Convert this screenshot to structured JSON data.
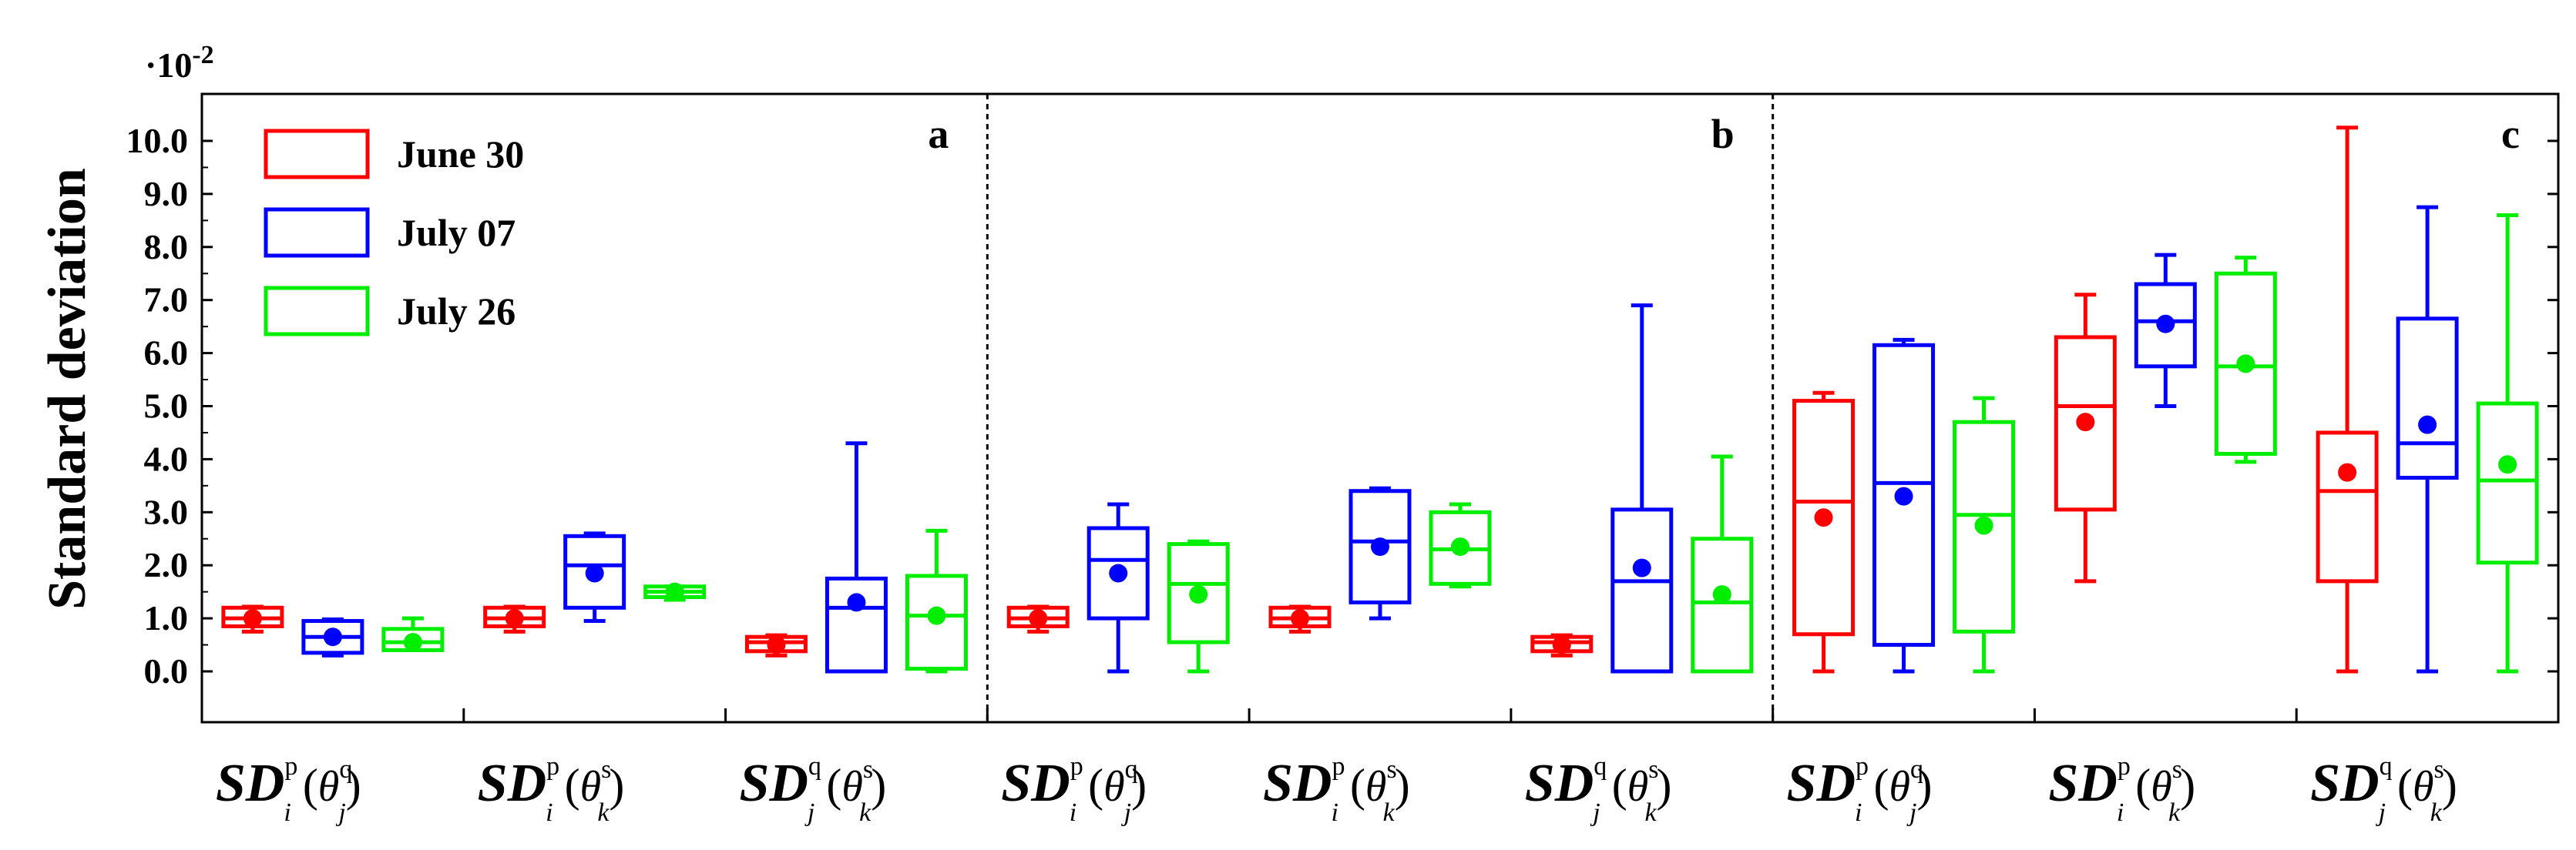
{
  "chart_data": {
    "type": "box",
    "title": "",
    "ylabel": "Standard deviation",
    "y_multiplier": "·10",
    "y_multiplier_exp": "-2",
    "ylim": [
      -0.7,
      10.7
    ],
    "yticks": [
      "0.0",
      "1.0",
      "2.0",
      "3.0",
      "4.0",
      "5.0",
      "6.0",
      "7.0",
      "8.0",
      "9.0",
      "10.0"
    ],
    "legend_position": "top-left",
    "legend": [
      {
        "name": "June 30",
        "color": "#ff0000"
      },
      {
        "name": "July 07",
        "color": "#0000ff"
      },
      {
        "name": "July 26",
        "color": "#00ee00"
      }
    ],
    "panels": [
      {
        "label": "a",
        "groups": [
          {
            "category": {
              "main": "SD",
              "sub": "i",
              "sup": "p",
              "theta": "θ",
              "tsub": "j",
              "tsup": "q"
            },
            "boxes": [
              {
                "series": "June 30",
                "min": 0.75,
                "q1": 0.85,
                "median": 1.0,
                "q3": 1.2,
                "max": 1.22,
                "mean": 1.0
              },
              {
                "series": "July 07",
                "min": 0.3,
                "q1": 0.35,
                "median": 0.65,
                "q3": 0.95,
                "max": 0.98,
                "mean": 0.65
              },
              {
                "series": "July 26",
                "min": 0.4,
                "q1": 0.4,
                "median": 0.55,
                "q3": 0.8,
                "max": 1.0,
                "mean": 0.55
              }
            ]
          },
          {
            "category": {
              "main": "SD",
              "sub": "i",
              "sup": "p",
              "theta": "θ",
              "tsub": "k",
              "tsup": "s"
            },
            "boxes": [
              {
                "series": "June 30",
                "min": 0.75,
                "q1": 0.85,
                "median": 1.0,
                "q3": 1.2,
                "max": 1.22,
                "mean": 1.0
              },
              {
                "series": "July 07",
                "min": 0.95,
                "q1": 1.2,
                "median": 2.0,
                "q3": 2.55,
                "max": 2.6,
                "mean": 1.85
              },
              {
                "series": "July 26",
                "min": 1.35,
                "q1": 1.4,
                "median": 1.5,
                "q3": 1.6,
                "max": 1.6,
                "mean": 1.5
              }
            ]
          },
          {
            "category": {
              "main": "SD",
              "sub": "j",
              "sup": "q",
              "theta": "θ",
              "tsub": "k",
              "tsup": "s"
            },
            "boxes": [
              {
                "series": "June 30",
                "min": 0.3,
                "q1": 0.38,
                "median": 0.55,
                "q3": 0.65,
                "max": 0.68,
                "mean": 0.5
              },
              {
                "series": "July 07",
                "min": 0.0,
                "q1": 0.0,
                "median": 1.2,
                "q3": 1.75,
                "max": 4.3,
                "mean": 1.3
              },
              {
                "series": "July 26",
                "min": 0.0,
                "q1": 0.05,
                "median": 1.05,
                "q3": 1.8,
                "max": 2.65,
                "mean": 1.05
              }
            ]
          }
        ]
      },
      {
        "label": "b",
        "groups": [
          {
            "category": {
              "main": "SD",
              "sub": "i",
              "sup": "p",
              "theta": "θ",
              "tsub": "j",
              "tsup": "q"
            },
            "boxes": [
              {
                "series": "June 30",
                "min": 0.75,
                "q1": 0.85,
                "median": 1.0,
                "q3": 1.2,
                "max": 1.22,
                "mean": 1.0
              },
              {
                "series": "July 07",
                "min": 0.0,
                "q1": 1.0,
                "median": 2.1,
                "q3": 2.7,
                "max": 3.15,
                "mean": 1.85
              },
              {
                "series": "July 26",
                "min": 0.0,
                "q1": 0.55,
                "median": 1.65,
                "q3": 2.4,
                "max": 2.45,
                "mean": 1.45
              }
            ]
          },
          {
            "category": {
              "main": "SD",
              "sub": "i",
              "sup": "p",
              "theta": "θ",
              "tsub": "k",
              "tsup": "s"
            },
            "boxes": [
              {
                "series": "June 30",
                "min": 0.75,
                "q1": 0.85,
                "median": 1.0,
                "q3": 1.2,
                "max": 1.22,
                "mean": 1.0
              },
              {
                "series": "July 07",
                "min": 1.0,
                "q1": 1.3,
                "median": 2.45,
                "q3": 3.4,
                "max": 3.45,
                "mean": 2.35
              },
              {
                "series": "July 26",
                "min": 1.6,
                "q1": 1.65,
                "median": 2.3,
                "q3": 3.0,
                "max": 3.15,
                "mean": 2.35
              }
            ]
          },
          {
            "category": {
              "main": "SD",
              "sub": "j",
              "sup": "q",
              "theta": "θ",
              "tsub": "k",
              "tsup": "s"
            },
            "boxes": [
              {
                "series": "June 30",
                "min": 0.3,
                "q1": 0.38,
                "median": 0.55,
                "q3": 0.65,
                "max": 0.68,
                "mean": 0.5
              },
              {
                "series": "July 07",
                "min": 0.0,
                "q1": 0.0,
                "median": 1.7,
                "q3": 3.05,
                "max": 6.9,
                "mean": 1.95
              },
              {
                "series": "July 26",
                "min": 0.0,
                "q1": 0.0,
                "median": 1.3,
                "q3": 2.5,
                "max": 4.05,
                "mean": 1.45
              }
            ]
          }
        ]
      },
      {
        "label": "c",
        "groups": [
          {
            "category": {
              "main": "SD",
              "sub": "i",
              "sup": "p",
              "theta": "θ",
              "tsub": "j",
              "tsup": "q"
            },
            "boxes": [
              {
                "series": "June 30",
                "min": 0.0,
                "q1": 0.7,
                "median": 3.2,
                "q3": 5.1,
                "max": 5.25,
                "mean": 2.9
              },
              {
                "series": "July 07",
                "min": 0.0,
                "q1": 0.5,
                "median": 3.55,
                "q3": 6.15,
                "max": 6.25,
                "mean": 3.3
              },
              {
                "series": "July 26",
                "min": 0.0,
                "q1": 0.75,
                "median": 2.95,
                "q3": 4.7,
                "max": 5.15,
                "mean": 2.75
              }
            ]
          },
          {
            "category": {
              "main": "SD",
              "sub": "i",
              "sup": "p",
              "theta": "θ",
              "tsub": "k",
              "tsup": "s"
            },
            "boxes": [
              {
                "series": "June 30",
                "min": 1.7,
                "q1": 3.05,
                "median": 5.0,
                "q3": 6.3,
                "max": 7.1,
                "mean": 4.7
              },
              {
                "series": "July 07",
                "min": 5.0,
                "q1": 5.75,
                "median": 6.6,
                "q3": 7.3,
                "max": 7.85,
                "mean": 6.55
              },
              {
                "series": "July 26",
                "min": 3.95,
                "q1": 4.1,
                "median": 5.75,
                "q3": 7.5,
                "max": 7.8,
                "mean": 5.8
              }
            ]
          },
          {
            "category": {
              "main": "SD",
              "sub": "j",
              "sup": "q",
              "theta": "θ",
              "tsub": "k",
              "tsup": "s"
            },
            "boxes": [
              {
                "series": "June 30",
                "min": 0.0,
                "q1": 1.7,
                "median": 3.4,
                "q3": 4.5,
                "max": 10.25,
                "mean": 3.75
              },
              {
                "series": "July 07",
                "min": 0.0,
                "q1": 3.65,
                "median": 4.3,
                "q3": 6.65,
                "max": 8.75,
                "mean": 4.65
              },
              {
                "series": "July 26",
                "min": 0.0,
                "q1": 2.05,
                "median": 3.6,
                "q3": 5.05,
                "max": 8.6,
                "mean": 3.9
              }
            ]
          }
        ]
      }
    ]
  }
}
